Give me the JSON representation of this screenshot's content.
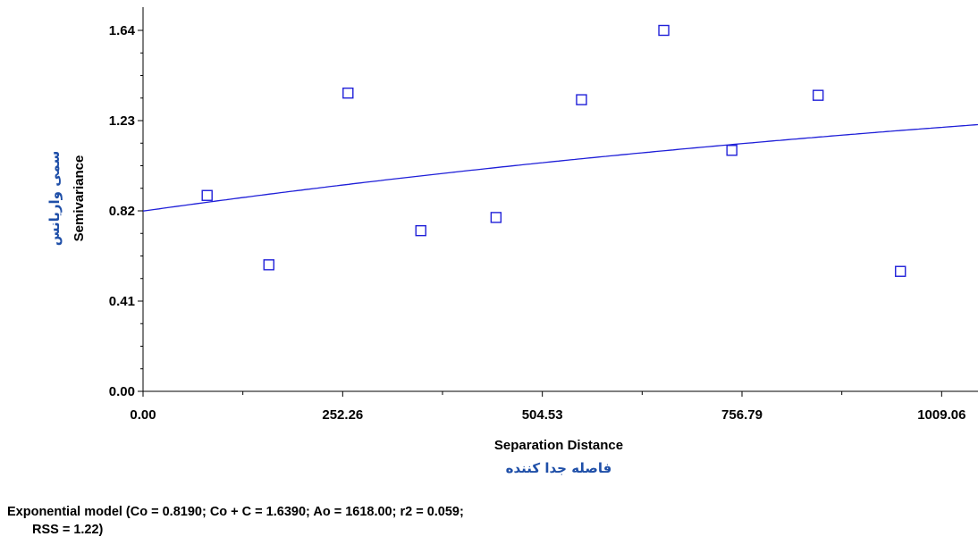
{
  "chart_data": {
    "type": "scatter",
    "x_ticks": [
      "0.00",
      "252.26",
      "504.53",
      "756.79",
      "1009.06"
    ],
    "y_ticks": [
      "0.00",
      "0.41",
      "0.82",
      "1.23",
      "1.64"
    ],
    "xlim": [
      0,
      1055
    ],
    "ylim": [
      0,
      1.64
    ],
    "xlabel": "Separation Distance",
    "xlabel_fa": "فاصله جدا کننده",
    "ylabel": "Semivariance",
    "ylabel_fa": "سمی واریانس",
    "points": [
      {
        "x": 81,
        "y": 0.89
      },
      {
        "x": 159,
        "y": 0.575
      },
      {
        "x": 259,
        "y": 1.355
      },
      {
        "x": 351,
        "y": 0.73
      },
      {
        "x": 446,
        "y": 0.79
      },
      {
        "x": 554,
        "y": 1.325
      },
      {
        "x": 658,
        "y": 1.64
      },
      {
        "x": 744,
        "y": 1.095
      },
      {
        "x": 853,
        "y": 1.345
      },
      {
        "x": 957,
        "y": 0.545
      }
    ],
    "model": {
      "type": "exponential",
      "nugget": 0.819,
      "sill": 1.639,
      "range": 1618.0
    },
    "colors": {
      "points": "#1f1fd8",
      "model_line": "#1f1fd8",
      "persian_text": "#1f4fa8"
    }
  },
  "caption": {
    "line1": "Exponential model (Co = 0.8190; Co + C = 1.6390; Ao = 1618.00; r2 = 0.059;",
    "line2": "RSS = 1.22)"
  }
}
